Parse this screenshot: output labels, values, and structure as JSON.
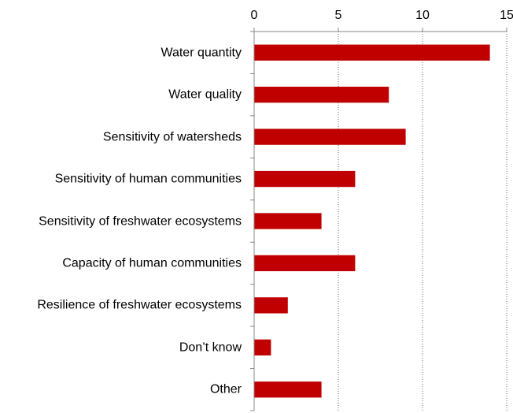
{
  "chart_data": {
    "type": "bar",
    "orientation": "horizontal",
    "categories": [
      "Water quantity",
      "Water quality",
      "Sensitivity of watersheds",
      "Sensitivity of human communities",
      "Sensitivity of freshwater ecosystems",
      "Capacity of human communities",
      "Resilience of freshwater ecosystems",
      "Don’t know",
      "Other"
    ],
    "values": [
      14,
      8,
      9,
      6,
      4,
      6,
      2,
      1,
      4
    ],
    "color": "#c00000",
    "xlim": [
      0,
      15
    ],
    "xticks": [
      0,
      5,
      10,
      15
    ],
    "grid": true
  }
}
